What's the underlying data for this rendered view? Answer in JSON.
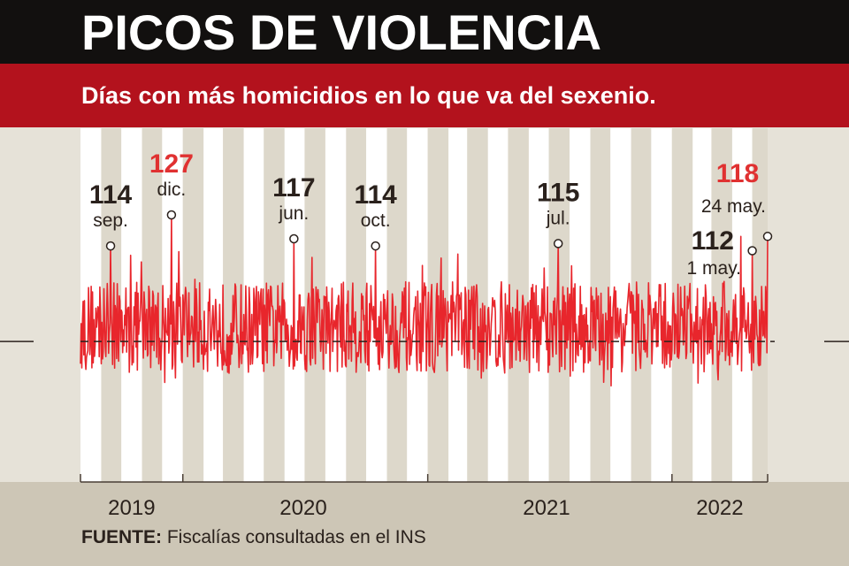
{
  "header": {
    "title": "PICOS DE VIOLENCIA",
    "subtitle": "Días con más homicidios en lo que va del sexenio."
  },
  "source": {
    "label": "FUENTE:",
    "text": "Fiscalías consultadas en el INS"
  },
  "colors": {
    "line": "#e8262c",
    "highlight": "#e03131",
    "header": "#12100f",
    "band": "#b3121d",
    "text": "#2a211c"
  },
  "chart_data": {
    "type": "line",
    "title": "PICOS DE VIOLENCIA",
    "subtitle": "Días con más homicidios en lo que va del sexenio.",
    "x_tick_labels": [
      "2019",
      "2020",
      "2021",
      "2022"
    ],
    "reference_line": "dashed horizontal (average)",
    "grid": "alternating monthly vertical stripes",
    "annotations": [
      {
        "date": "2019-09",
        "value": 114,
        "label": "sep.",
        "highlight": false
      },
      {
        "date": "2019-12",
        "value": 127,
        "label": "dic.",
        "highlight": true
      },
      {
        "date": "2020-06",
        "value": 117,
        "label": "jun.",
        "highlight": false
      },
      {
        "date": "2020-10",
        "value": 114,
        "label": "oct.",
        "highlight": false
      },
      {
        "date": "2021-07",
        "value": 115,
        "label": "jul.",
        "highlight": false
      },
      {
        "date": "2022-05-01",
        "value": 112,
        "label": "1 may.",
        "highlight": false
      },
      {
        "date": "2022-05-24",
        "value": 118,
        "label": "24 may.",
        "highlight": true
      }
    ]
  }
}
